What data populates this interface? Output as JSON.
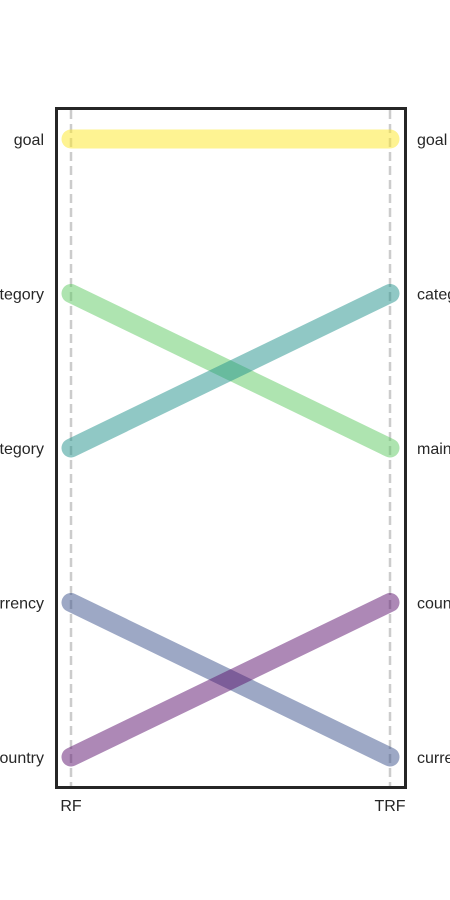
{
  "chart_data": {
    "type": "bump",
    "x": [
      "RF",
      "TRF"
    ],
    "axes": [
      "RF",
      "TRF"
    ],
    "series": [
      {
        "name": "goal",
        "ranks": [
          1,
          1
        ],
        "color": "#fde725"
      },
      {
        "name": "main_category",
        "ranks": [
          2,
          3
        ],
        "color": "#5ec962"
      },
      {
        "name": "category",
        "ranks": [
          3,
          2
        ],
        "color": "#21918c"
      },
      {
        "name": "currency",
        "ranks": [
          4,
          5
        ],
        "color": "#3b528b"
      },
      {
        "name": "country",
        "ranks": [
          5,
          4
        ],
        "color": "#5c126e"
      }
    ],
    "rank_order": "top-to-bottom",
    "grid": false,
    "legend": "none"
  }
}
